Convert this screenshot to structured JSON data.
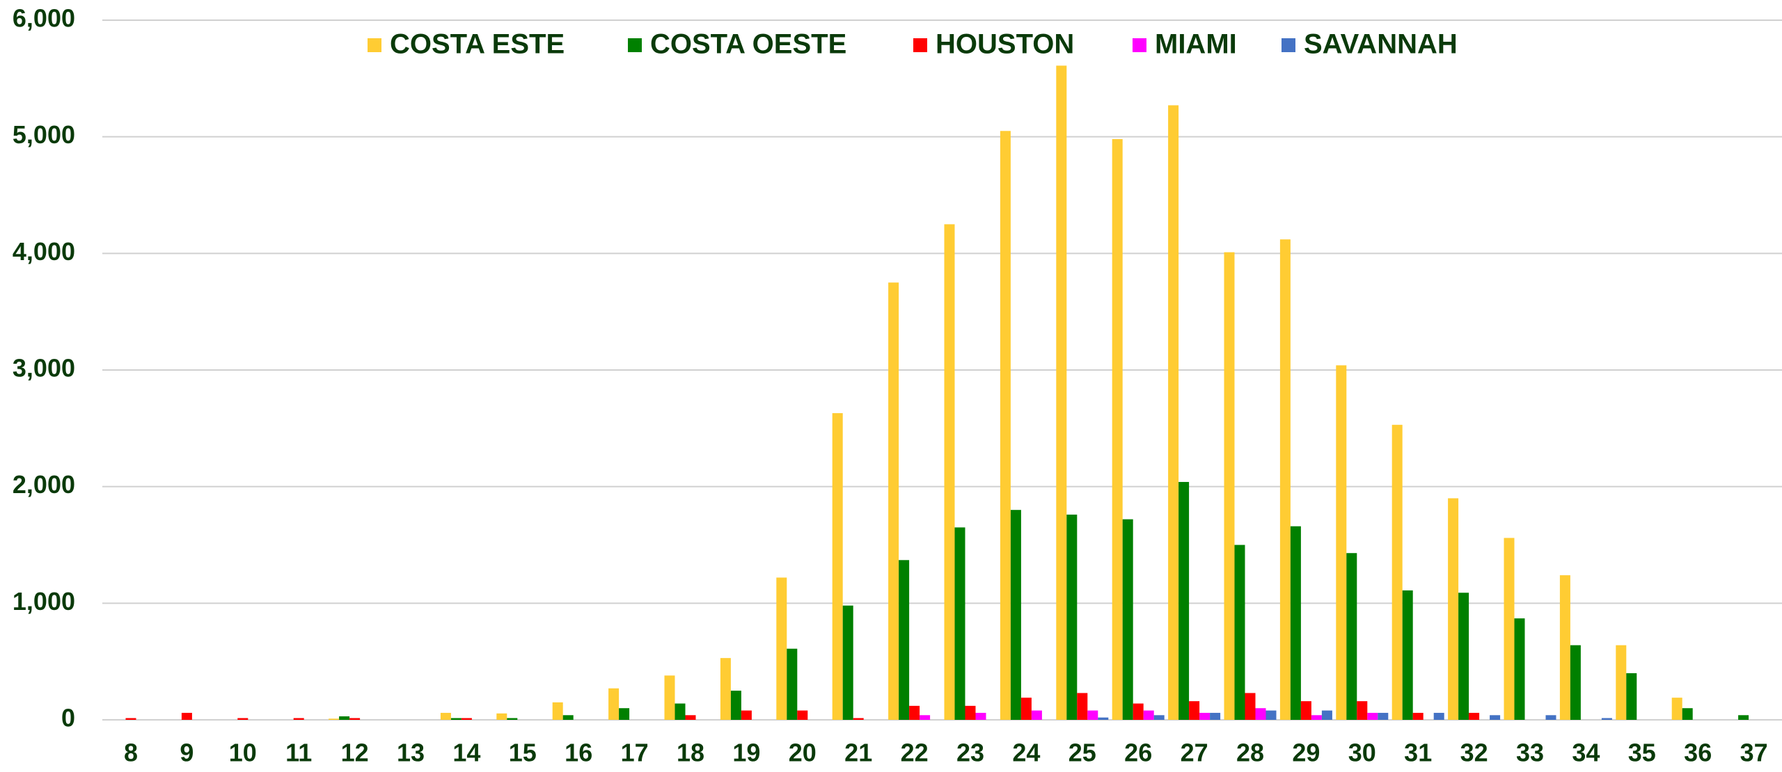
{
  "chart_data": {
    "type": "bar",
    "legend": "top",
    "grid": true,
    "categories": [
      "8",
      "9",
      "10",
      "11",
      "12",
      "13",
      "14",
      "15",
      "16",
      "17",
      "18",
      "19",
      "20",
      "21",
      "22",
      "23",
      "24",
      "25",
      "26",
      "27",
      "28",
      "29",
      "30",
      "31",
      "32",
      "33",
      "34",
      "35",
      "36",
      "37"
    ],
    "ylim": [
      0,
      6000
    ],
    "yticks": [
      0,
      {
        "value": 1000,
        "label": "1,000"
      },
      {
        "value": 2000,
        "label": "2,000"
      },
      {
        "value": 3000,
        "label": "3,000"
      },
      {
        "value": 4000,
        "label": "4,000"
      },
      {
        "value": 5000,
        "label": "5,000"
      },
      {
        "value": 6000,
        "label": "6,000"
      }
    ],
    "series": [
      {
        "name": "COSTA ESTE",
        "color": "#ffcc33",
        "values": [
          0,
          0,
          0,
          0,
          10,
          0,
          60,
          55,
          150,
          270,
          380,
          530,
          1220,
          2630,
          3750,
          4250,
          5050,
          5610,
          4980,
          5270,
          4010,
          4120,
          3040,
          2530,
          1900,
          1560,
          1240,
          640,
          190,
          0
        ]
      },
      {
        "name": "COSTA OESTE",
        "color": "#008000",
        "values": [
          0,
          0,
          0,
          0,
          30,
          0,
          15,
          15,
          40,
          100,
          140,
          250,
          610,
          980,
          1370,
          1650,
          1800,
          1760,
          1720,
          2040,
          1500,
          1660,
          1430,
          1110,
          1090,
          870,
          640,
          400,
          100,
          40
        ]
      },
      {
        "name": "HOUSTON",
        "color": "#ff0000",
        "values": [
          15,
          60,
          15,
          15,
          15,
          0,
          15,
          0,
          0,
          0,
          40,
          80,
          80,
          15,
          120,
          120,
          190,
          230,
          140,
          160,
          230,
          160,
          160,
          60,
          60,
          0,
          0,
          0,
          0,
          0
        ]
      },
      {
        "name": "MIAMI",
        "color": "#ff00ff",
        "values": [
          0,
          0,
          0,
          0,
          0,
          0,
          0,
          0,
          0,
          0,
          0,
          0,
          0,
          0,
          40,
          60,
          80,
          80,
          80,
          60,
          100,
          40,
          60,
          0,
          0,
          0,
          0,
          0,
          0,
          0
        ]
      },
      {
        "name": "SAVANNAH",
        "color": "#4472c4",
        "values": [
          0,
          0,
          0,
          0,
          0,
          0,
          0,
          0,
          0,
          0,
          0,
          0,
          0,
          0,
          0,
          0,
          0,
          20,
          40,
          60,
          80,
          80,
          60,
          60,
          40,
          40,
          15,
          0,
          0,
          0
        ]
      }
    ]
  }
}
